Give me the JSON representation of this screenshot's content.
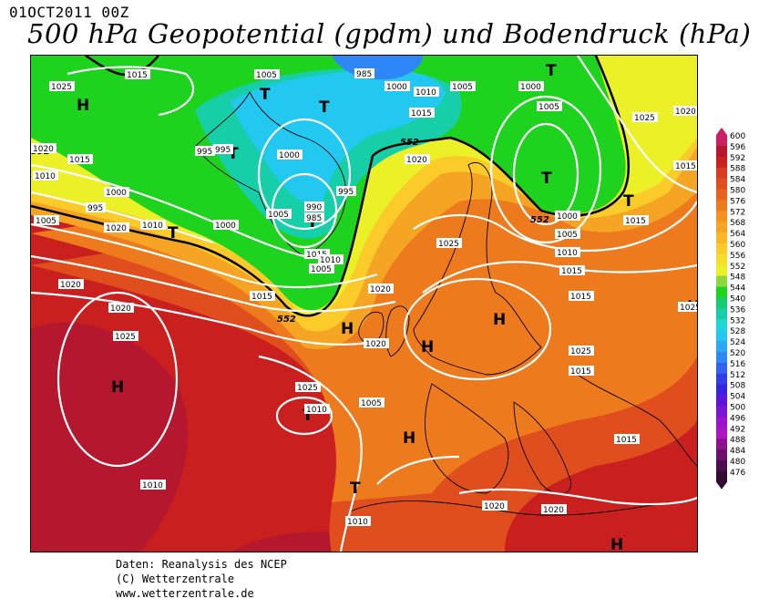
{
  "header": {
    "date": "01OCT2011 00Z",
    "title": "500 hPa Geopotential (gpdm) und Bodendruck (hPa)"
  },
  "credits": [
    "Daten: Reanalysis des NCEP",
    "(C) Wetterzentrale",
    "www.wetterzentrale.de"
  ],
  "legend": {
    "ticks": [
      "600",
      "596",
      "592",
      "588",
      "584",
      "580",
      "576",
      "572",
      "568",
      "564",
      "560",
      "556",
      "552",
      "548",
      "544",
      "540",
      "536",
      "532",
      "528",
      "524",
      "520",
      "516",
      "512",
      "508",
      "504",
      "500",
      "496",
      "492",
      "488",
      "484",
      "480",
      "476"
    ],
    "colors": [
      "#cc1e64",
      "#b5172e",
      "#c9201f",
      "#d93b1f",
      "#e04e1e",
      "#e8641e",
      "#ee7a1e",
      "#f3921f",
      "#f6a424",
      "#f8b826",
      "#fbcb2a",
      "#f7de2b",
      "#ebf027",
      "#8bd83c",
      "#1ed31e",
      "#16cc73",
      "#16cfa8",
      "#1fd8d4",
      "#22c8ef",
      "#2aa8f6",
      "#2f86f6",
      "#3262f0",
      "#2f3ee6",
      "#3a24df",
      "#5a18dd",
      "#7a14d6",
      "#9a14d0",
      "#ae14bf",
      "#8d128a",
      "#6a106a",
      "#4a0f4a",
      "#330c33"
    ]
  },
  "map": {
    "fill_colors": {
      "deep_red": "#b5172e",
      "red": "#c9201f",
      "orange_red": "#e04e1e",
      "orange": "#ee7a1e",
      "light_orange": "#f6a424",
      "yellow_orange": "#fbcb2a",
      "yellow": "#ebf027",
      "green": "#1ed31e",
      "teal": "#16cfa8",
      "cyan": "#22c8ef",
      "blue": "#2f86f6"
    },
    "contour_552_label": "552",
    "highs": [
      "H",
      "H",
      "H",
      "H",
      "H",
      "H",
      "H",
      "H"
    ],
    "lows": [
      "T",
      "T",
      "T",
      "T",
      "T",
      "T",
      "T",
      "T",
      "T",
      "T"
    ],
    "isobar_labels": [
      "1025",
      "1015",
      "1005",
      "985",
      "995",
      "1000",
      "1010",
      "1015",
      "1005",
      "1000",
      "1005",
      "1020",
      "1010",
      "1010",
      "1015",
      "1020",
      "995",
      "995",
      "1005",
      "1005",
      "1000",
      "1020",
      "1010",
      "1000",
      "1015",
      "995",
      "1000",
      "990",
      "985",
      "1005",
      "1010",
      "1000",
      "1005",
      "1010",
      "1015",
      "1015",
      "1020",
      "1025",
      "1020",
      "1015",
      "1020",
      "1025",
      "1020",
      "1025",
      "1025",
      "1015",
      "1010",
      "1015",
      "1025",
      "1020",
      "1020",
      "1010",
      "1015",
      "1010",
      "1005",
      "1015",
      "1020",
      "1025",
      "1020",
      "1025",
      "552",
      "552",
      "552",
      "552"
    ]
  }
}
